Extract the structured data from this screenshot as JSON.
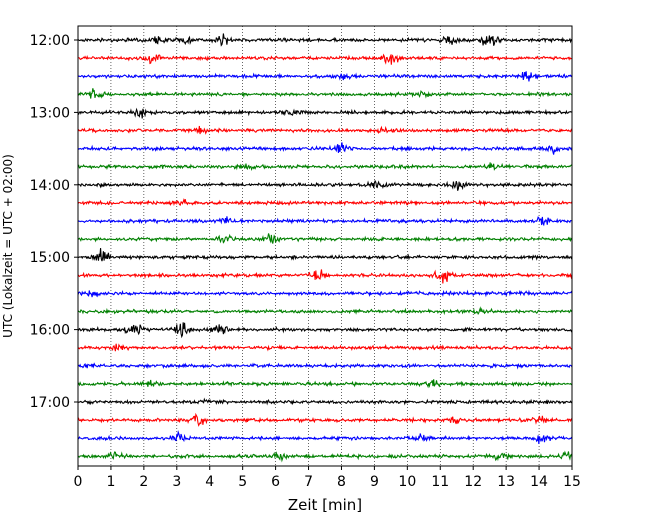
{
  "chart_data": {
    "type": "line",
    "xlabel": "Zeit  [min]",
    "ylabel": "UTC (Lokalzeit = UTC + 02:00)",
    "xlim": [
      0,
      15
    ],
    "x_ticks": [
      0,
      1,
      2,
      3,
      4,
      5,
      6,
      7,
      8,
      9,
      10,
      11,
      12,
      13,
      14,
      15
    ],
    "x_tick_labels": [
      "0",
      "1",
      "2",
      "3",
      "4",
      "5",
      "6",
      "7",
      "8",
      "9",
      "10",
      "11",
      "12",
      "13",
      "14",
      "15"
    ],
    "y_ticks": [
      {
        "label": "12:00",
        "row": 0
      },
      {
        "label": "13:00",
        "row": 4
      },
      {
        "label": "14:00",
        "row": 8
      },
      {
        "label": "15:00",
        "row": 12
      },
      {
        "label": "16:00",
        "row": 16
      },
      {
        "label": "17:00",
        "row": 20
      }
    ],
    "grid": "vertical-dotted",
    "row_colors": [
      "#000000",
      "#ff0000",
      "#0000ff",
      "#008000"
    ],
    "series": [
      {
        "start": "12:00",
        "events": [
          [
            2.4,
            0.5
          ],
          [
            3.3,
            0.4
          ],
          [
            4.4,
            0.6
          ],
          [
            11.3,
            0.8
          ],
          [
            12.5,
            1.0
          ]
        ]
      },
      {
        "start": "12:15",
        "events": [
          [
            2.3,
            0.8
          ],
          [
            9.5,
            0.6
          ]
        ]
      },
      {
        "start": "12:30",
        "events": [
          [
            8.1,
            0.3
          ],
          [
            13.6,
            0.7
          ]
        ]
      },
      {
        "start": "12:45",
        "events": [
          [
            0.5,
            0.6
          ],
          [
            10.5,
            0.3
          ]
        ]
      },
      {
        "start": "13:00",
        "events": [
          [
            1.9,
            0.6
          ],
          [
            6.5,
            0.3
          ]
        ]
      },
      {
        "start": "13:15",
        "events": [
          [
            3.7,
            0.4
          ],
          [
            9.3,
            0.3
          ]
        ]
      },
      {
        "start": "13:30",
        "events": [
          [
            7.9,
            0.6
          ],
          [
            14.4,
            0.6
          ]
        ]
      },
      {
        "start": "13:45",
        "events": [
          [
            5.2,
            0.3
          ],
          [
            12.6,
            0.4
          ]
        ]
      },
      {
        "start": "14:00",
        "events": [
          [
            9.1,
            0.6
          ],
          [
            11.5,
            0.7
          ]
        ]
      },
      {
        "start": "14:15",
        "events": [
          [
            3.1,
            0.3
          ]
        ]
      },
      {
        "start": "14:30",
        "events": [
          [
            4.5,
            0.3
          ],
          [
            14.1,
            0.4
          ]
        ]
      },
      {
        "start": "14:45",
        "events": [
          [
            4.4,
            0.5
          ],
          [
            5.8,
            0.7
          ]
        ]
      },
      {
        "start": "15:00",
        "events": [
          [
            0.7,
            0.7
          ]
        ]
      },
      {
        "start": "15:15",
        "events": [
          [
            7.3,
            0.8
          ],
          [
            11.1,
            0.9
          ]
        ]
      },
      {
        "start": "15:30",
        "events": [
          [
            0.4,
            0.4
          ]
        ]
      },
      {
        "start": "15:45",
        "events": [
          [
            12.2,
            0.4
          ]
        ]
      },
      {
        "start": "16:00",
        "events": [
          [
            1.7,
            1.0
          ],
          [
            3.1,
            1.0
          ],
          [
            4.3,
            0.6
          ]
        ]
      },
      {
        "start": "16:15",
        "events": [
          [
            1.2,
            0.3
          ]
        ]
      },
      {
        "start": "16:30",
        "events": [
          [
            0.4,
            0.2
          ]
        ]
      },
      {
        "start": "16:45",
        "events": [
          [
            2.2,
            0.5
          ],
          [
            10.7,
            0.5
          ]
        ]
      },
      {
        "start": "17:00",
        "events": [
          [
            4.0,
            0.2
          ]
        ]
      },
      {
        "start": "17:15",
        "events": [
          [
            3.6,
            0.8
          ],
          [
            11.4,
            0.5
          ],
          [
            14.0,
            0.5
          ]
        ]
      },
      {
        "start": "17:30",
        "events": [
          [
            3.0,
            0.5
          ],
          [
            10.4,
            0.4
          ],
          [
            14.1,
            0.5
          ]
        ]
      },
      {
        "start": "17:45",
        "events": [
          [
            1.1,
            0.5
          ],
          [
            6.1,
            0.4
          ],
          [
            12.9,
            0.4
          ],
          [
            14.8,
            0.5
          ]
        ]
      }
    ]
  }
}
